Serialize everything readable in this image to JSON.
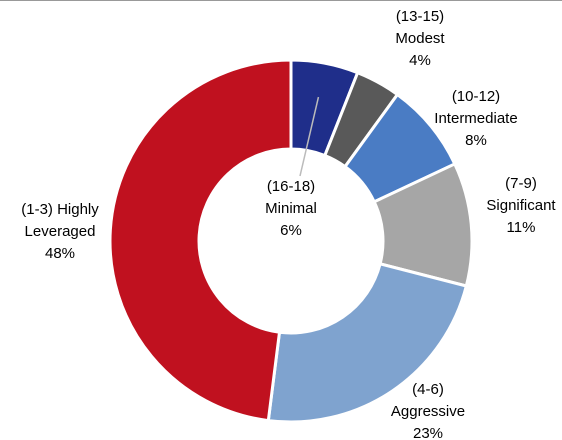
{
  "chart_data": {
    "type": "donut",
    "categories": [
      [
        "(16-18)",
        "Minimal"
      ],
      [
        "(13-15)",
        "Modest"
      ],
      [
        "(10-12)",
        "Intermediate"
      ],
      [
        "(7-9)",
        "Significant"
      ],
      [
        "(4-6)",
        "Aggressive"
      ],
      [
        "(1-3) Highly",
        "Leveraged"
      ]
    ],
    "values": [
      6,
      4,
      8,
      11,
      23,
      48
    ],
    "value_labels": [
      "6%",
      "4%",
      "8%",
      "11%",
      "23%",
      "48%"
    ],
    "colors": [
      "#1f2e8a",
      "#595959",
      "#4a7cc4",
      "#a6a6a6",
      "#7fa3cf",
      "#c0111f"
    ]
  }
}
